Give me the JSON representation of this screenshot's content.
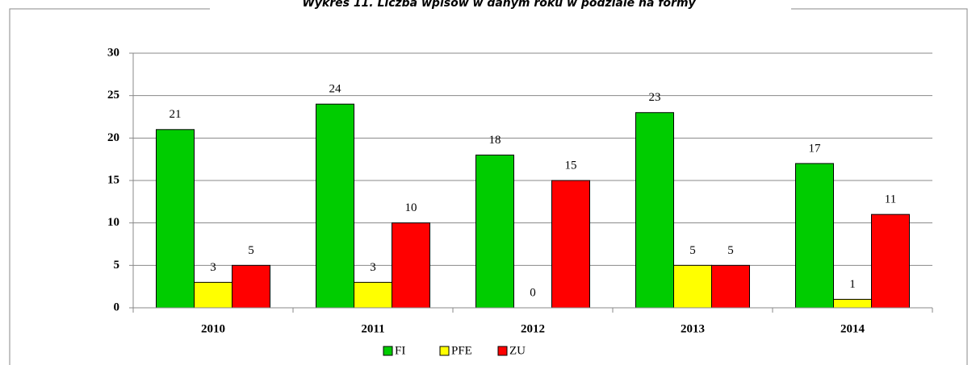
{
  "chart_data": {
    "type": "bar",
    "title": "Wykres 11. Liczba wpisów w danym roku w podziale na formy",
    "categories": [
      "2010",
      "2011",
      "2012",
      "2013",
      "2014"
    ],
    "series": [
      {
        "name": "FI",
        "color": "#00cc00",
        "values": [
          21,
          24,
          18,
          23,
          17
        ]
      },
      {
        "name": "PFE",
        "color": "#ffff00",
        "values": [
          3,
          3,
          0,
          5,
          1
        ]
      },
      {
        "name": "ZU",
        "color": "#ff0000",
        "values": [
          5,
          10,
          15,
          5,
          11
        ]
      }
    ],
    "ylim": [
      0,
      30
    ],
    "yticks": [
      0,
      5,
      10,
      15,
      20,
      25,
      30
    ],
    "grid": true,
    "legend": "bottom"
  }
}
